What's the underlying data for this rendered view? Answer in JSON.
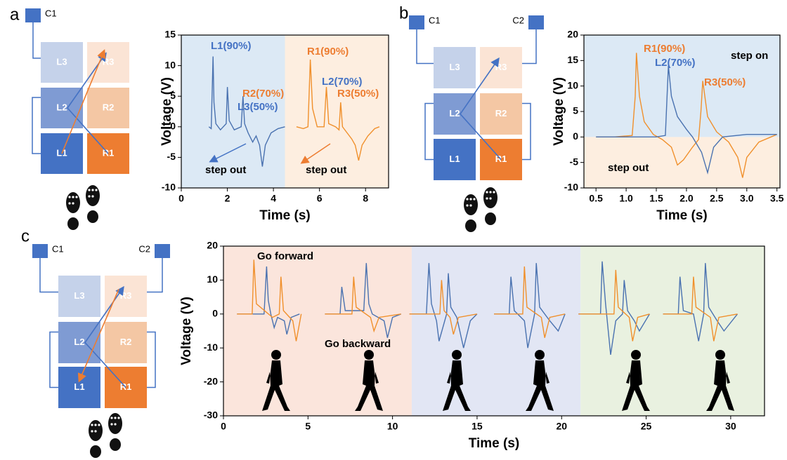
{
  "panels": [
    "a",
    "b",
    "c"
  ],
  "diagrams": [
    {
      "connectors": [
        "C1"
      ],
      "cells": [
        [
          "L3",
          "R3"
        ],
        [
          "L2",
          "R2"
        ],
        [
          "L1",
          "R1"
        ]
      ]
    },
    {
      "connectors": [
        "C1",
        "C2"
      ],
      "cells": [
        [
          "L3",
          "R3"
        ],
        [
          "L2",
          "R2"
        ],
        [
          "L1",
          "R1"
        ]
      ]
    },
    {
      "connectors": [
        "C1",
        "C2"
      ],
      "cells": [
        [
          "L3",
          "R3"
        ],
        [
          "L2",
          "R2"
        ],
        [
          "L1",
          "R1"
        ]
      ]
    }
  ],
  "chart_data": [
    {
      "type": "line",
      "x_label": "Time (s)",
      "y_label": "Voltage (V)",
      "xlim": [
        0,
        9
      ],
      "xticks": [
        0,
        2,
        4,
        6,
        8
      ],
      "ylim": [
        -10,
        15
      ],
      "yticks": [
        -10,
        -5,
        0,
        5,
        10,
        15
      ],
      "series": [
        {
          "color": "#4a72b0",
          "x": [
            1.2,
            1.3,
            1.38,
            1.42,
            1.5,
            1.7,
            1.95,
            2.0,
            2.08,
            2.3,
            2.6,
            2.68,
            2.75,
            2.9,
            3.1,
            3.25,
            3.4,
            3.52,
            3.65,
            3.9,
            4.2,
            4.5
          ],
          "values": [
            0,
            -0.3,
            11.5,
            4,
            0.5,
            -0.5,
            0.5,
            6.5,
            1,
            -0.5,
            0,
            5,
            0.5,
            -1,
            -2.5,
            -1.5,
            -3,
            -6.5,
            -3,
            -1,
            -0.3,
            0
          ]
        },
        {
          "color": "#f0902c",
          "x": [
            5.0,
            5.3,
            5.5,
            5.6,
            5.7,
            5.9,
            6.2,
            6.3,
            6.4,
            6.7,
            6.85,
            6.92,
            7.0,
            7.2,
            7.4,
            7.55,
            7.7,
            7.85,
            8.1,
            8.4,
            8.6
          ],
          "values": [
            0,
            -0.3,
            0,
            11,
            3,
            0,
            0,
            6.5,
            0.5,
            0,
            -0.5,
            4,
            0,
            -1,
            -2,
            -3,
            -5.5,
            -3,
            -1.5,
            -0.3,
            0
          ]
        }
      ],
      "annotations": [
        {
          "text": "L1(90%)",
          "color": "#4472c4"
        },
        {
          "text": "R2(70%)",
          "color": "#ed7d31"
        },
        {
          "text": "L3(50%)",
          "color": "#4472c4"
        },
        {
          "text": "R1(90%)",
          "color": "#ed7d31"
        },
        {
          "text": "L2(70%)",
          "color": "#4472c4"
        },
        {
          "text": "R3(50%)",
          "color": "#ed7d31"
        },
        {
          "text": "step out",
          "color": "#000000"
        },
        {
          "text": "step out",
          "color": "#000000"
        }
      ]
    },
    {
      "type": "line",
      "x_label": "Time (s)",
      "y_label": "Voltage (V)",
      "xlim": [
        0.3,
        3.55
      ],
      "xticks": [
        0.5,
        {
          "value": 1,
          "label": "1.0"
        },
        1.5,
        {
          "value": 2,
          "label": "2.0"
        },
        2.5,
        {
          "value": 3,
          "label": "3.0"
        },
        3.5
      ],
      "ylim": [
        -10,
        20
      ],
      "yticks": [
        -10,
        -5,
        0,
        5,
        10,
        15,
        20
      ],
      "series": [
        {
          "color": "#f0902c",
          "x": [
            0.5,
            0.8,
            1.1,
            1.15,
            1.17,
            1.22,
            1.3,
            1.45,
            1.6,
            1.75,
            1.85,
            1.95,
            2.1,
            2.2,
            2.24,
            2.27,
            2.35,
            2.5,
            2.7,
            2.85,
            2.93,
            3.0,
            3.2,
            3.5
          ],
          "values": [
            0,
            0,
            0.3,
            8,
            16.5,
            8,
            3,
            0.5,
            -0.5,
            -2,
            -5.5,
            -4.5,
            -2,
            -0.5,
            5,
            11,
            4,
            1,
            -1,
            -4,
            -8,
            -4,
            -1,
            0.5
          ]
        },
        {
          "color": "#4a72b0",
          "x": [
            0.5,
            1.0,
            1.5,
            1.65,
            1.7,
            1.75,
            1.85,
            2.0,
            2.1,
            2.25,
            2.35,
            2.45,
            2.6,
            3.0,
            3.5
          ],
          "values": [
            0,
            0,
            0,
            0.3,
            14,
            8,
            4,
            1.5,
            0,
            -3,
            -7,
            -2,
            0,
            0.5,
            0.5
          ]
        }
      ],
      "annotations": [
        {
          "text": "R1(90%)",
          "color": "#ed7d31"
        },
        {
          "text": "L2(70%)",
          "color": "#4472c4"
        },
        {
          "text": "R3(50%)",
          "color": "#ed7d31"
        },
        {
          "text": "step on",
          "color": "#000000"
        },
        {
          "text": "step out",
          "color": "#000000"
        }
      ]
    },
    {
      "type": "line",
      "x_label": "Time (s)",
      "y_label": "Voltage (V)",
      "xlim": [
        0,
        32
      ],
      "xticks": [
        0,
        5,
        10,
        15,
        20,
        25,
        30
      ],
      "ylim": [
        -30,
        20
      ],
      "yticks": [
        -30,
        -20,
        -10,
        0,
        10,
        20
      ],
      "series": [
        {
          "color": "#4a72b0",
          "x": [
            0.8,
            2.4,
            2.55,
            2.65,
            2.8,
            3.0,
            3.2,
            3.6,
            3.75,
            4.0,
            4.5,
            null,
            6.0,
            6.9,
            7.0,
            7.2,
            8.3,
            8.45,
            8.6,
            8.8,
            9.5,
            9.7,
            10.0,
            10.5,
            null,
            11.0,
            12.0,
            12.15,
            12.3,
            12.6,
            12.75,
            13.2,
            13.3,
            13.45,
            13.8,
            14.2,
            14.6,
            15.0,
            null,
            16.0,
            16.9,
            17.0,
            17.2,
            17.8,
            18.0,
            18.4,
            18.5,
            18.7,
            19.3,
            19.8,
            20.2,
            null,
            21.0,
            22.3,
            22.4,
            22.6,
            22.9,
            23.2,
            23.6,
            23.7,
            23.9,
            24.3,
            24.6,
            25.2,
            null,
            26.0,
            26.9,
            27.0,
            27.2,
            27.8,
            28.1,
            28.4,
            28.5,
            28.7,
            29.2,
            29.6,
            30.4
          ],
          "values": [
            0,
            0,
            14,
            4,
            0,
            -4,
            -1,
            -2,
            -6,
            -1,
            0,
            null,
            0,
            0,
            8,
            1,
            1,
            15,
            3,
            0,
            -2,
            -7,
            -1,
            0,
            null,
            0,
            0,
            15,
            3,
            -2,
            -8,
            0,
            12,
            2,
            -1,
            -10,
            -2,
            0,
            null,
            0,
            0,
            11,
            1,
            -2,
            -10,
            0,
            15,
            2,
            -2,
            -5,
            0,
            null,
            0,
            0,
            15.5,
            3,
            -12,
            -2,
            0,
            10,
            1,
            -2,
            -5,
            0,
            null,
            0,
            0,
            11,
            1,
            0,
            -8,
            0,
            15,
            2,
            -2,
            -5,
            0
          ]
        },
        {
          "color": "#f0902c",
          "x": [
            0.8,
            1.7,
            1.8,
            1.95,
            2.9,
            3.3,
            3.4,
            3.55,
            4.1,
            4.3,
            4.6,
            null,
            6.0,
            7.6,
            7.7,
            7.85,
            8.7,
            8.9,
            9.2,
            10.5,
            null,
            11.0,
            12.8,
            12.9,
            13.05,
            13.4,
            13.6,
            13.9,
            15.0,
            null,
            16.0,
            17.7,
            17.8,
            17.95,
            18.8,
            19.0,
            19.3,
            20.2,
            null,
            21.0,
            23.1,
            23.2,
            23.35,
            24.0,
            24.2,
            24.5,
            25.2,
            null,
            26.0,
            27.7,
            27.8,
            27.95,
            28.8,
            29.0,
            29.3,
            30.4
          ],
          "values": [
            0,
            0,
            16,
            3,
            -1,
            0,
            11,
            1,
            -2,
            -8,
            0,
            null,
            0,
            0,
            11,
            2,
            -1,
            -5,
            -1,
            0,
            null,
            0,
            0,
            10,
            1,
            -1,
            -6,
            -1,
            0,
            null,
            0,
            0,
            14,
            2,
            -1,
            -7,
            -1,
            0,
            null,
            0,
            0,
            13,
            2,
            -1,
            -8,
            -1,
            0,
            null,
            0,
            0,
            11,
            2,
            -1,
            -8,
            -1,
            0
          ]
        }
      ],
      "annotations": [
        {
          "text": "Go forward",
          "color": "#000000"
        },
        {
          "text": "Go backward",
          "color": "#000000"
        }
      ]
    }
  ]
}
